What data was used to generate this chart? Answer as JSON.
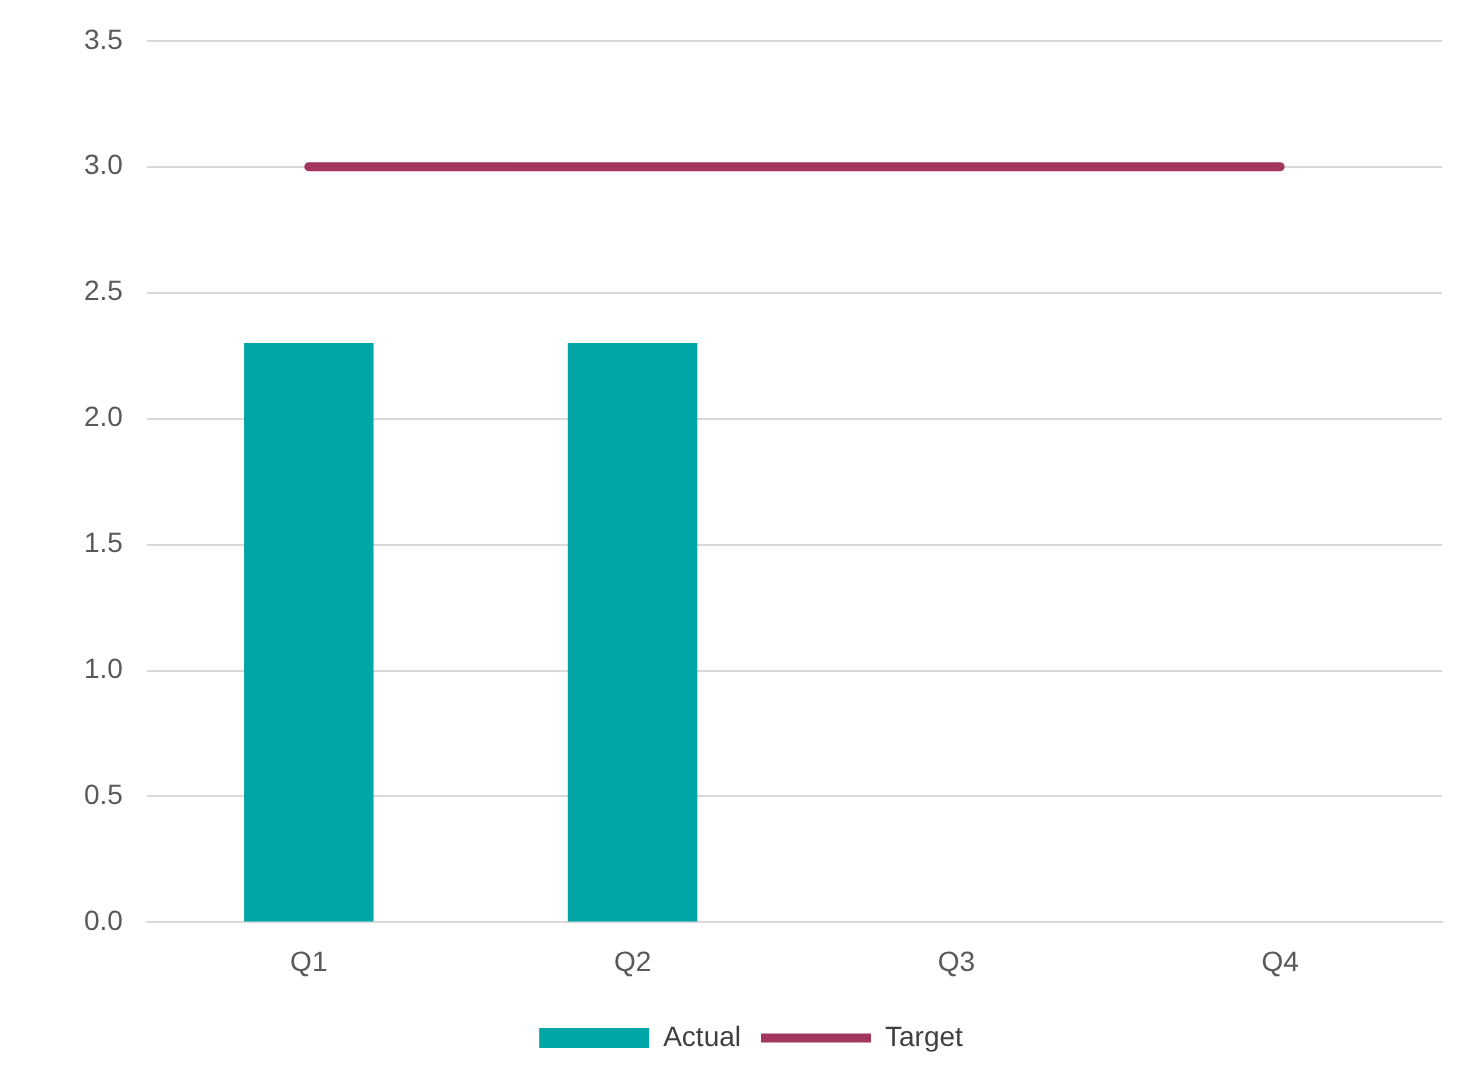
{
  "chart_data": {
    "type": "bar",
    "categories": [
      "Q1",
      "Q2",
      "Q3",
      "Q4"
    ],
    "series": [
      {
        "name": "Actual",
        "color": "#00a5a5",
        "values": [
          2.3,
          2.3,
          null,
          null
        ]
      },
      {
        "name": "Target",
        "type": "line",
        "color": "#a3365f",
        "values": [
          3,
          3,
          3,
          3
        ],
        "marker": "none"
      }
    ],
    "ylim": [
      0,
      3.5
    ],
    "yticks": [
      {
        "value": 0,
        "label": "0.0"
      },
      {
        "value": 0.5,
        "label": "0.5"
      },
      {
        "value": 1,
        "label": "1.0"
      },
      {
        "value": 1.5,
        "label": "1.5"
      },
      {
        "value": 2,
        "label": "2.0"
      },
      {
        "value": 2.5,
        "label": "2.5"
      },
      {
        "value": 3,
        "label": "3.0"
      },
      {
        "value": 3.5,
        "label": "3.5"
      }
    ],
    "grid": "y",
    "legend": "bottom"
  }
}
